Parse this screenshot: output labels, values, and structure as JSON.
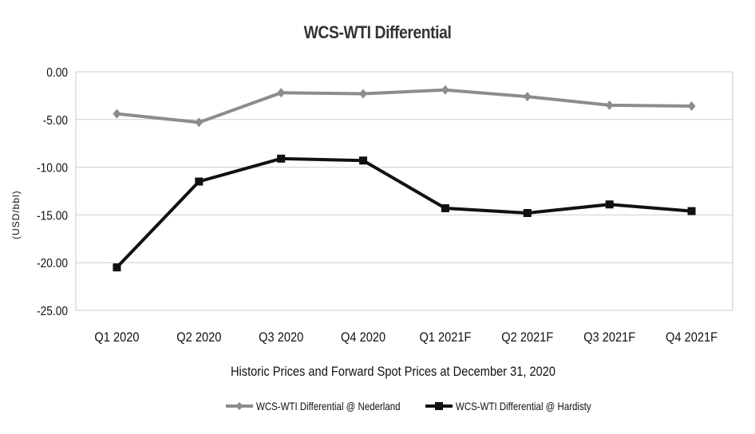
{
  "chart_data": {
    "type": "line",
    "title": "WCS-WTI Differential",
    "xlabel": "Historic Prices and Forward Spot Prices at December 31, 2020",
    "ylabel": "(USD/bbl)",
    "categories": [
      "Q1 2020",
      "Q2 2020",
      "Q3 2020",
      "Q4 2020",
      "Q1 2021F",
      "Q2 2021F",
      "Q3 2021F",
      "Q4 2021F"
    ],
    "yticks": [
      "0.00",
      "-5.00",
      "-10.00",
      "-15.00",
      "-20.00",
      "-25.00"
    ],
    "ylim": [
      -25,
      0
    ],
    "grid": true,
    "legend_position": "bottom",
    "series": [
      {
        "name": "WCS-WTI Differential @ Nederland",
        "values": [
          -4.4,
          -5.3,
          -2.2,
          -2.3,
          -1.9,
          -2.6,
          -3.5,
          -3.6
        ],
        "color": "#8c8c8c",
        "marker": "diamond"
      },
      {
        "name": "WCS-WTI Differential @ Hardisty",
        "values": [
          -20.5,
          -11.5,
          -9.1,
          -9.3,
          -14.3,
          -14.8,
          -13.9,
          -14.6
        ],
        "color": "#111111",
        "marker": "square"
      }
    ]
  }
}
